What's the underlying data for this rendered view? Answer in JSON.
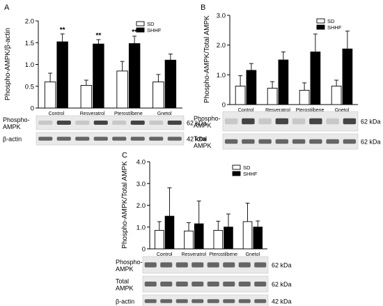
{
  "chart_data": [
    {
      "type": "bar",
      "panel": "A",
      "categories": [
        "Control",
        "Resveratrol",
        "Pterostilbene",
        "Gnetol"
      ],
      "series": [
        {
          "name": "SD",
          "values": [
            0.6,
            0.52,
            0.85,
            0.6
          ],
          "errors": [
            0.2,
            0.12,
            0.22,
            0.17
          ],
          "color": "#ffffff"
        },
        {
          "name": "SHHF",
          "values": [
            1.52,
            1.47,
            1.48,
            1.1
          ],
          "errors": [
            0.18,
            0.1,
            0.17,
            0.14
          ],
          "color": "#000000"
        }
      ],
      "significance": [
        "**",
        "**",
        "**",
        ""
      ],
      "ylabel": "Phospho-AMPK/β-actin",
      "ylim": [
        0,
        2.0
      ],
      "yticks": [
        "0",
        "0.5",
        "1.0",
        "1.5",
        "2.0"
      ],
      "legend": "top-right",
      "blots": [
        {
          "label": "Phospho-\nAMPK",
          "kda": "62 kDa"
        },
        {
          "label": "β-actin",
          "kda": "42 kDa"
        }
      ]
    },
    {
      "type": "bar",
      "panel": "B",
      "categories": [
        "Control",
        "Resveratrol",
        "Pterostilbene",
        "Gnetol"
      ],
      "series": [
        {
          "name": "SD",
          "values": [
            0.62,
            0.55,
            0.48,
            0.62
          ],
          "errors": [
            0.35,
            0.22,
            0.25,
            0.2
          ],
          "color": "#ffffff"
        },
        {
          "name": "SHHF",
          "values": [
            1.15,
            1.5,
            1.77,
            1.87
          ],
          "errors": [
            0.23,
            0.27,
            0.6,
            0.6
          ],
          "color": "#000000"
        }
      ],
      "ylabel": "Phospho-AMPK/Total AMPK",
      "ylim": [
        0,
        3.0
      ],
      "yticks": [
        "0",
        "1.0",
        "2.0",
        "3.0"
      ],
      "legend": "top-right",
      "blots": [
        {
          "label": "Phospho-\nAMPK",
          "kda": "62 kDa"
        },
        {
          "label": "Total\nAMPK",
          "kda": "62 kDa"
        }
      ]
    },
    {
      "type": "bar",
      "panel": "C",
      "categories": [
        "Control",
        "Resveratrol",
        "Pterostilbene",
        "Gnetol"
      ],
      "series": [
        {
          "name": "SD",
          "values": [
            0.85,
            0.82,
            0.85,
            1.25
          ],
          "errors": [
            0.4,
            0.38,
            0.42,
            0.85
          ],
          "color": "#ffffff"
        },
        {
          "name": "SHHF",
          "values": [
            1.5,
            1.15,
            1.0,
            1.0
          ],
          "errors": [
            1.3,
            1.05,
            0.6,
            0.28
          ],
          "color": "#000000"
        }
      ],
      "ylabel": "Phospho-AMPK/Total AMPK",
      "ylim": [
        0,
        4.0
      ],
      "yticks": [
        "0",
        "1.0",
        "2.0",
        "3.0",
        "4.0"
      ],
      "legend": "top-right",
      "blots": [
        {
          "label": "Phospho-\nAMPK",
          "kda": "62 kDa"
        },
        {
          "label": "Total\nAMPK",
          "kda": "62 kDa"
        },
        {
          "label": "β-actin",
          "kda": "42 kDa"
        }
      ]
    }
  ]
}
